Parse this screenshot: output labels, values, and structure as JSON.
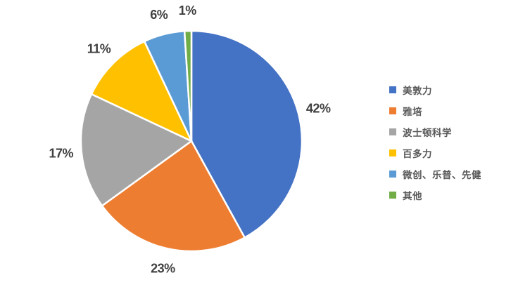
{
  "chart_data": {
    "type": "pie",
    "title": "",
    "categories": [
      "美敦力",
      "雅培",
      "波士顿科学",
      "百多力",
      "微创、乐普、先健",
      "其他"
    ],
    "values": [
      42,
      23,
      17,
      11,
      6,
      1
    ],
    "data_labels": [
      "42%",
      "23%",
      "17%",
      "11%",
      "6%",
      "1%"
    ],
    "colors": [
      "#4472C4",
      "#ED7D31",
      "#A5A5A5",
      "#FFC000",
      "#5B9BD5",
      "#70AD47"
    ],
    "slice_border_color": "#FFFFFF",
    "data_label_color": "#404040",
    "legend_text_color": "#595959",
    "legend_position": "right",
    "start_angle_deg": 0,
    "direction": "clockwise",
    "labels_placement": "outside-end"
  }
}
